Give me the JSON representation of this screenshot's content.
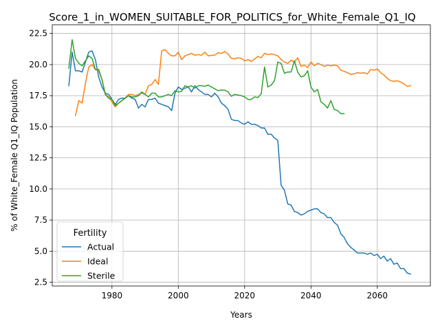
{
  "chart_data": {
    "type": "line",
    "title": "Score_1_in_WOMEN_SUITABLE_FOR_POLITICS_for_White_Female_Q1_IQ",
    "xlabel": "Years",
    "ylabel": "% of White_Female Q1_IQ Population",
    "xlim": [
      1962,
      2076
    ],
    "ylim": [
      2.2,
      23.2
    ],
    "xticks": [
      1980,
      2000,
      2020,
      2040,
      2060
    ],
    "yticks": [
      2.5,
      5.0,
      7.5,
      10.0,
      12.5,
      15.0,
      17.5,
      20.0,
      22.5
    ],
    "ytick_labels": [
      "2.5",
      "5.0",
      "7.5",
      "10.0",
      "12.5",
      "15.0",
      "17.5",
      "20.0",
      "22.5"
    ],
    "grid": true,
    "legend": {
      "title": "Fertility",
      "placement": "lower-left"
    },
    "series": [
      {
        "name": "Actual",
        "color": "#1f77b4",
        "x": [
          1967,
          1968,
          1969,
          1970,
          1971,
          1972,
          1973,
          1974,
          1975,
          1976,
          1977,
          1978,
          1979,
          1980,
          1981,
          1982,
          1983,
          1984,
          1985,
          1986,
          1987,
          1988,
          1989,
          1990,
          1991,
          1992,
          1993,
          1994,
          1995,
          1996,
          1997,
          1998,
          1999,
          2000,
          2001,
          2002,
          2003,
          2004,
          2005,
          2006,
          2007,
          2008,
          2009,
          2010,
          2011,
          2012,
          2013,
          2014,
          2015,
          2016,
          2017,
          2018,
          2019,
          2020,
          2021,
          2022,
          2023,
          2024,
          2025,
          2026,
          2027,
          2028,
          2029,
          2030,
          2031,
          2032,
          2033,
          2034,
          2035,
          2036,
          2037,
          2038,
          2039,
          2040,
          2041,
          2042,
          2043,
          2044,
          2045,
          2046,
          2047,
          2048,
          2049,
          2050,
          2051,
          2052,
          2053,
          2054,
          2055,
          2056,
          2057,
          2058,
          2059,
          2060,
          2061,
          2062,
          2063,
          2064,
          2065,
          2066,
          2067,
          2068,
          2069,
          2070
        ],
        "y": [
          18.3,
          21.0,
          19.5,
          19.5,
          19.4,
          20.2,
          21.0,
          21.1,
          20.4,
          19.0,
          18.2,
          17.7,
          17.6,
          17.2,
          16.8,
          17.2,
          17.3,
          17.3,
          17.5,
          17.3,
          17.2,
          16.5,
          16.8,
          16.6,
          17.2,
          17.2,
          17.3,
          16.9,
          16.8,
          16.7,
          16.6,
          16.3,
          17.7,
          18.2,
          18.0,
          18.1,
          18.2,
          17.8,
          18.3,
          18.0,
          17.8,
          17.6,
          17.6,
          17.4,
          17.7,
          17.4,
          16.9,
          16.7,
          16.4,
          15.6,
          15.5,
          15.5,
          15.3,
          15.2,
          15.4,
          15.2,
          15.2,
          15.1,
          14.9,
          14.9,
          14.4,
          14.4,
          14.1,
          13.9,
          10.3,
          9.9,
          8.8,
          8.7,
          8.2,
          8.1,
          7.9,
          8.0,
          8.2,
          8.3,
          8.4,
          8.4,
          8.1,
          8.0,
          7.7,
          7.7,
          7.3,
          7.1,
          6.4,
          6.1,
          5.6,
          5.3,
          5.1,
          4.85,
          4.85,
          4.85,
          4.75,
          4.85,
          4.65,
          4.75,
          4.4,
          4.6,
          4.2,
          4.4,
          3.95,
          4.05,
          3.6,
          3.6,
          3.25,
          3.15
        ]
      },
      {
        "name": "Ideal",
        "color": "#ff7f0e",
        "x": [
          1969,
          1970,
          1971,
          1972,
          1973,
          1974,
          1975,
          1976,
          1977,
          1978,
          1979,
          1980,
          1981,
          1982,
          1983,
          1984,
          1985,
          1986,
          1987,
          1988,
          1989,
          1990,
          1991,
          1992,
          1993,
          1994,
          1995,
          1996,
          1997,
          1998,
          1999,
          2000,
          2001,
          2002,
          2003,
          2004,
          2005,
          2006,
          2007,
          2008,
          2009,
          2010,
          2011,
          2012,
          2013,
          2014,
          2015,
          2016,
          2017,
          2018,
          2019,
          2020,
          2021,
          2022,
          2023,
          2024,
          2025,
          2026,
          2027,
          2028,
          2029,
          2030,
          2031,
          2032,
          2033,
          2034,
          2035,
          2036,
          2037,
          2038,
          2039,
          2040,
          2041,
          2042,
          2043,
          2044,
          2045,
          2046,
          2047,
          2048,
          2049,
          2050,
          2051,
          2052,
          2053,
          2054,
          2055,
          2056,
          2057,
          2058,
          2059,
          2060,
          2061,
          2062,
          2063,
          2064,
          2065,
          2066,
          2067,
          2068,
          2069,
          2070
        ],
        "y": [
          15.9,
          17.1,
          16.9,
          18.5,
          19.8,
          20.0,
          19.6,
          19.5,
          18.8,
          17.6,
          17.4,
          17.0,
          16.6,
          16.9,
          17.1,
          17.3,
          17.6,
          17.6,
          17.5,
          17.6,
          17.7,
          17.6,
          18.3,
          18.4,
          18.8,
          18.4,
          21.1,
          21.2,
          20.9,
          20.7,
          20.7,
          21.0,
          20.4,
          20.7,
          20.8,
          20.9,
          20.75,
          20.8,
          20.75,
          21.0,
          20.7,
          20.75,
          20.75,
          20.95,
          20.9,
          21.05,
          20.85,
          20.5,
          20.45,
          20.55,
          20.5,
          20.3,
          20.4,
          20.25,
          20.45,
          20.65,
          20.55,
          20.9,
          20.8,
          20.85,
          20.8,
          20.7,
          20.4,
          20.2,
          20.1,
          20.35,
          20.2,
          20.55,
          19.85,
          19.95,
          19.75,
          20.2,
          19.9,
          20.1,
          20.0,
          19.85,
          19.95,
          19.9,
          19.95,
          19.9,
          19.55,
          19.45,
          19.35,
          19.2,
          19.25,
          19.35,
          19.3,
          19.35,
          19.25,
          19.6,
          19.55,
          19.65,
          19.35,
          19.15,
          18.9,
          18.7,
          18.65,
          18.7,
          18.6,
          18.45,
          18.25,
          18.3
        ]
      },
      {
        "name": "Sterile",
        "color": "#2ca02c",
        "x": [
          1967,
          1968,
          1969,
          1970,
          1971,
          1972,
          1973,
          1974,
          1975,
          1976,
          1977,
          1978,
          1979,
          1980,
          1981,
          1982,
          1983,
          1984,
          1985,
          1986,
          1987,
          1988,
          1989,
          1990,
          1991,
          1992,
          1993,
          1994,
          1995,
          1996,
          1997,
          1998,
          1999,
          2000,
          2001,
          2002,
          2003,
          2004,
          2005,
          2006,
          2007,
          2008,
          2009,
          2010,
          2011,
          2012,
          2013,
          2014,
          2015,
          2016,
          2017,
          2018,
          2019,
          2020,
          2021,
          2022,
          2023,
          2024,
          2025,
          2026,
          2027,
          2028,
          2029,
          2030,
          2031,
          2032,
          2033,
          2034,
          2035,
          2036,
          2037,
          2038,
          2039,
          2040,
          2041,
          2042,
          2043,
          2044,
          2045,
          2046,
          2047,
          2048,
          2049,
          2050
        ],
        "y": [
          19.7,
          22.0,
          20.5,
          20.1,
          19.9,
          20.3,
          20.7,
          20.5,
          19.6,
          19.6,
          18.8,
          17.6,
          17.3,
          17.2,
          16.7,
          16.9,
          17.1,
          17.3,
          17.5,
          17.4,
          17.4,
          17.5,
          17.8,
          17.6,
          17.4,
          17.7,
          17.7,
          17.4,
          17.4,
          17.5,
          17.6,
          17.5,
          17.9,
          17.8,
          17.85,
          18.3,
          18.2,
          18.3,
          18.1,
          18.3,
          18.3,
          18.25,
          18.35,
          18.2,
          18.05,
          17.9,
          17.95,
          17.95,
          17.8,
          17.45,
          17.6,
          17.55,
          17.5,
          17.4,
          17.2,
          17.2,
          17.4,
          17.35,
          17.65,
          19.8,
          18.2,
          18.35,
          18.7,
          20.2,
          20.1,
          19.3,
          19.4,
          19.4,
          20.3,
          19.4,
          19.0,
          19.1,
          19.5,
          18.2,
          17.8,
          18.0,
          17.0,
          16.8,
          16.5,
          17.1,
          16.4,
          16.3,
          16.05,
          16.05
        ]
      }
    ]
  }
}
